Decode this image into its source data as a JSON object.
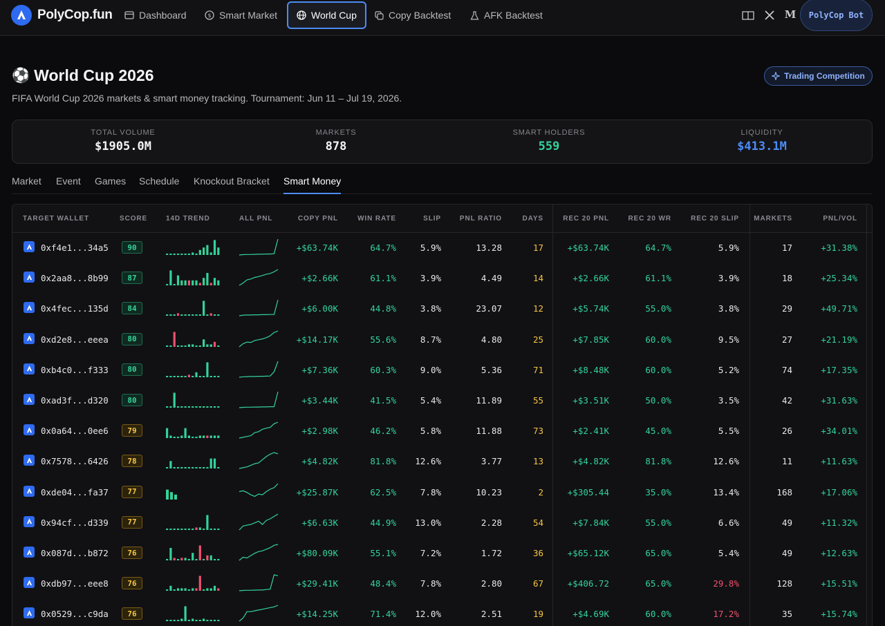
{
  "brand": {
    "name": "PolyCop.fun",
    "accent": "#2f6bf0"
  },
  "nav": {
    "items": [
      {
        "label": "Dashboard",
        "icon": "dashboard-icon"
      },
      {
        "label": "Smart Market",
        "icon": "dollar-icon"
      },
      {
        "label": "World Cup",
        "icon": "globe-icon",
        "active": true
      },
      {
        "label": "Copy Backtest",
        "icon": "copy-icon"
      },
      {
        "label": "AFK Backtest",
        "icon": "flask-icon"
      }
    ],
    "bot_label": "PolyCop Bot"
  },
  "header": {
    "emoji": "⚽",
    "title": "World Cup 2026",
    "subtitle": "FIFA World Cup 2026 markets & smart money tracking. Tournament: Jun 11 – Jul 19, 2026.",
    "competition_label": "Trading Competition"
  },
  "stats": [
    {
      "label": "TOTAL VOLUME",
      "value": "$1905.0M",
      "color": "#f3f3f3"
    },
    {
      "label": "MARKETS",
      "value": "878",
      "color": "#f3f3f3"
    },
    {
      "label": "SMART HOLDERS",
      "value": "559",
      "color": "#34d399"
    },
    {
      "label": "LIQUIDITY",
      "value": "$413.1M",
      "color": "#4d8bf5"
    }
  ],
  "tabs": [
    "Market",
    "Event",
    "Games",
    "Schedule",
    "Knockout Bracket",
    "Smart Money"
  ],
  "active_tab": "Smart Money",
  "table": {
    "columns": [
      "TARGET WALLET",
      "SCORE",
      "14D TREND",
      "ALL PNL",
      "COPY PNL",
      "WIN RATE",
      "SLIP",
      "PNL RATIO",
      "DAYS",
      "REC 20 PNL",
      "REC 20 WR",
      "REC 20 SLIP",
      "MARKETS",
      "PNL/VOL"
    ],
    "rows": [
      {
        "wallet": "0xf4e1...34a5",
        "score": "90",
        "copy_pnl": "+$63.74K",
        "win_rate": "64.7%",
        "slip": "5.9%",
        "pnl_ratio": "13.28",
        "days": "17",
        "rec20_pnl": "+$63.74K",
        "rec20_wr": "64.7%",
        "rec20_slip": "5.9%",
        "markets": "17",
        "pnl_vol": "+31.38%",
        "trend": [
          0,
          0,
          0,
          0,
          0,
          0,
          0,
          1,
          0,
          2,
          3,
          4,
          1,
          6,
          3
        ],
        "pnl_curve": [
          0,
          0.02,
          0.03,
          0.03,
          0.04,
          0.05,
          0.05,
          0.06,
          0.06,
          0.08,
          1
        ]
      },
      {
        "wallet": "0x2aa8...8b99",
        "score": "87",
        "copy_pnl": "+$2.66K",
        "win_rate": "61.1%",
        "slip": "3.9%",
        "pnl_ratio": "4.49",
        "days": "14",
        "rec20_pnl": "+$2.66K",
        "rec20_wr": "61.1%",
        "rec20_slip": "3.9%",
        "markets": "18",
        "pnl_vol": "+25.34%",
        "trend": [
          0,
          6,
          0,
          4,
          2,
          2,
          -2,
          2,
          2,
          -1,
          3,
          5,
          -1,
          3,
          2
        ],
        "pnl_curve": [
          0,
          0.15,
          0.35,
          0.4,
          0.5,
          0.55,
          0.62,
          0.7,
          0.75,
          0.85,
          1
        ]
      },
      {
        "wallet": "0x4fec...135d",
        "score": "84",
        "copy_pnl": "+$6.00K",
        "win_rate": "44.8%",
        "slip": "3.8%",
        "pnl_ratio": "23.07",
        "days": "12",
        "rec20_pnl": "+$5.74K",
        "rec20_wr": "55.0%",
        "rec20_slip": "3.8%",
        "markets": "29",
        "pnl_vol": "+49.71%",
        "trend": [
          0,
          0,
          0,
          -1,
          0,
          0,
          0,
          0,
          0,
          0,
          6,
          0,
          -1,
          0,
          0
        ],
        "pnl_curve": [
          0,
          0.04,
          0.05,
          0.05,
          0.06,
          0.06,
          0.07,
          0.07,
          0.08,
          0.08,
          1
        ]
      },
      {
        "wallet": "0xd2e8...eeea",
        "score": "80",
        "copy_pnl": "+$14.17K",
        "win_rate": "55.6%",
        "slip": "8.7%",
        "pnl_ratio": "4.80",
        "days": "25",
        "rec20_pnl": "+$7.85K",
        "rec20_wr": "60.0%",
        "rec20_slip": "9.5%",
        "markets": "27",
        "pnl_vol": "+21.19%",
        "trend": [
          0,
          0,
          -6,
          0,
          0,
          0,
          1,
          1,
          0,
          0,
          3,
          1,
          1,
          -2,
          0
        ],
        "pnl_curve": [
          0,
          0.2,
          0.3,
          0.28,
          0.4,
          0.45,
          0.5,
          0.58,
          0.7,
          0.9,
          1
        ]
      },
      {
        "wallet": "0xb4c0...f333",
        "score": "80",
        "copy_pnl": "+$7.36K",
        "win_rate": "60.3%",
        "slip": "9.0%",
        "pnl_ratio": "5.36",
        "days": "71",
        "rec20_pnl": "+$8.48K",
        "rec20_wr": "60.0%",
        "rec20_slip": "5.2%",
        "markets": "74",
        "pnl_vol": "+17.35%",
        "trend": [
          0,
          0,
          0,
          0,
          0,
          0,
          -1,
          0,
          2,
          0,
          0,
          6,
          0,
          0,
          0
        ],
        "pnl_curve": [
          0,
          0.03,
          0.04,
          0.05,
          0.05,
          0.06,
          0.06,
          0.07,
          0.08,
          0.35,
          1
        ]
      },
      {
        "wallet": "0xad3f...d320",
        "score": "80",
        "copy_pnl": "+$3.44K",
        "win_rate": "41.5%",
        "slip": "5.4%",
        "pnl_ratio": "11.89",
        "days": "55",
        "rec20_pnl": "+$3.51K",
        "rec20_wr": "50.0%",
        "rec20_slip": "3.5%",
        "markets": "42",
        "pnl_vol": "+31.63%",
        "trend": [
          0,
          0,
          6,
          0,
          0,
          0,
          0,
          0,
          0,
          0,
          0,
          0,
          0,
          0,
          0
        ],
        "pnl_curve": [
          0,
          0.02,
          0.03,
          0.03,
          0.04,
          0.04,
          0.05,
          0.05,
          0.06,
          0.06,
          1
        ]
      },
      {
        "wallet": "0x0a64...0ee6",
        "score": "79",
        "copy_pnl": "+$2.98K",
        "win_rate": "46.2%",
        "slip": "5.8%",
        "pnl_ratio": "11.88",
        "days": "73",
        "rec20_pnl": "+$2.41K",
        "rec20_wr": "45.0%",
        "rec20_slip": "5.5%",
        "markets": "26",
        "pnl_vol": "+34.01%",
        "trend": [
          4,
          1,
          0,
          0,
          1,
          4,
          1,
          0,
          0,
          1,
          1,
          -1,
          1,
          1,
          1
        ],
        "pnl_curve": [
          0,
          0.05,
          0.1,
          0.15,
          0.35,
          0.4,
          0.55,
          0.62,
          0.68,
          0.9,
          1
        ]
      },
      {
        "wallet": "0x7578...6426",
        "score": "78",
        "copy_pnl": "+$4.82K",
        "win_rate": "81.8%",
        "slip": "12.6%",
        "pnl_ratio": "3.77",
        "days": "13",
        "rec20_pnl": "+$4.82K",
        "rec20_wr": "81.8%",
        "rec20_slip": "12.6%",
        "markets": "11",
        "pnl_vol": "+11.63%",
        "trend": [
          0,
          3,
          0,
          0,
          0,
          0,
          0,
          0,
          0,
          0,
          0,
          0,
          4,
          4,
          0
        ],
        "pnl_curve": [
          0,
          0.05,
          0.1,
          0.2,
          0.3,
          0.35,
          0.55,
          0.75,
          0.9,
          1,
          0.92
        ]
      },
      {
        "wallet": "0xde04...fa37",
        "score": "77",
        "copy_pnl": "+$25.87K",
        "win_rate": "62.5%",
        "slip": "7.8%",
        "pnl_ratio": "10.23",
        "days": "2",
        "rec20_pnl": "+$305.44",
        "rec20_wr": "35.0%",
        "rec20_slip": "13.4%",
        "markets": "168",
        "pnl_vol": "+17.06%",
        "trend": [
          4,
          3,
          2
        ],
        "pnl_curve": [
          0.5,
          0.55,
          0.45,
          0.3,
          0.2,
          0.35,
          0.3,
          0.5,
          0.65,
          0.75,
          1
        ]
      },
      {
        "wallet": "0x94cf...d339",
        "score": "77",
        "copy_pnl": "+$6.63K",
        "win_rate": "44.9%",
        "slip": "13.0%",
        "pnl_ratio": "2.28",
        "days": "54",
        "rec20_pnl": "+$7.84K",
        "rec20_wr": "55.0%",
        "rec20_slip": "6.6%",
        "markets": "49",
        "pnl_vol": "+11.32%",
        "trend": [
          0,
          0,
          0,
          0,
          0,
          0,
          0,
          0,
          -1,
          1,
          0,
          6,
          0,
          0,
          0
        ],
        "pnl_curve": [
          0,
          0.25,
          0.3,
          0.35,
          0.45,
          0.55,
          0.35,
          0.6,
          0.7,
          0.85,
          1
        ]
      },
      {
        "wallet": "0x087d...b872",
        "score": "76",
        "copy_pnl": "+$80.09K",
        "win_rate": "55.1%",
        "slip": "7.2%",
        "pnl_ratio": "1.72",
        "days": "36",
        "rec20_pnl": "+$65.12K",
        "rec20_wr": "65.0%",
        "rec20_slip": "5.4%",
        "markets": "49",
        "pnl_vol": "+12.63%",
        "trend": [
          0,
          5,
          -1,
          0,
          -1,
          1,
          0,
          3,
          0,
          -6,
          0,
          -2,
          2,
          0,
          0
        ],
        "pnl_curve": [
          0,
          0.2,
          0.15,
          0.3,
          0.45,
          0.55,
          0.6,
          0.7,
          0.8,
          0.95,
          1
        ]
      },
      {
        "wallet": "0xdb97...eee8",
        "score": "76",
        "copy_pnl": "+$29.41K",
        "win_rate": "48.4%",
        "slip": "7.8%",
        "pnl_ratio": "2.80",
        "days": "67",
        "rec20_pnl": "+$406.72",
        "rec20_wr": "65.0%",
        "rec20_slip": "29.8%",
        "markets": "128",
        "pnl_vol": "+15.51%",
        "trend": [
          0,
          2,
          0,
          1,
          1,
          1,
          0,
          1,
          -1,
          -6,
          0,
          1,
          1,
          2,
          -1
        ],
        "pnl_curve": [
          0,
          0.02,
          0.03,
          0.03,
          0.04,
          0.05,
          0.05,
          0.08,
          0.1,
          1,
          0.95
        ]
      },
      {
        "wallet": "0x0529...c9da",
        "score": "76",
        "copy_pnl": "+$14.25K",
        "win_rate": "71.4%",
        "slip": "12.0%",
        "pnl_ratio": "2.51",
        "days": "19",
        "rec20_pnl": "+$4.69K",
        "rec20_wr": "60.0%",
        "rec20_slip": "17.2%",
        "markets": "35",
        "pnl_vol": "+15.74%",
        "trend": [
          0,
          0,
          0,
          0,
          1,
          6,
          0,
          1,
          0,
          0,
          1,
          0,
          0,
          0,
          0
        ],
        "pnl_curve": [
          0,
          0.2,
          0.6,
          0.6,
          0.65,
          0.7,
          0.75,
          0.8,
          0.85,
          0.9,
          1
        ]
      }
    ]
  },
  "colors": {
    "positive": "#34d399",
    "negative": "#f0506e",
    "days": "#f5c542"
  }
}
